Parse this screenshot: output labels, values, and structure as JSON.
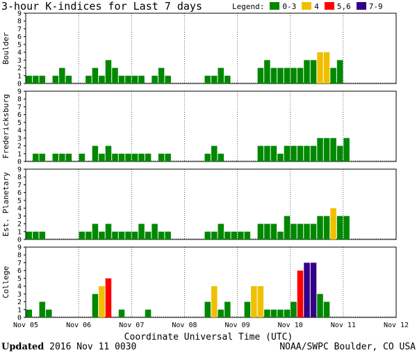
{
  "header": {
    "title": "3-hour K-indices for Last 7 days",
    "legend_label": "Legend:",
    "legend": [
      {
        "label": "0-3",
        "color": "#008800"
      },
      {
        "label": "4",
        "color": "#f0c000"
      },
      {
        "label": "5,6",
        "color": "#ff0000"
      },
      {
        "label": "7-9",
        "color": "#330088"
      }
    ]
  },
  "chart_data": {
    "type": "bar",
    "title": "3-hour K-indices for Last 7 days",
    "xlabel": "Coordinate Universal Time (UTC)",
    "ylim": [
      0,
      9
    ],
    "y_ticks": [
      "0",
      "1",
      "2",
      "3",
      "4",
      "5",
      "6",
      "7",
      "8",
      "9"
    ],
    "x_ticks": [
      "Nov 05",
      "Nov 06",
      "Nov 07",
      "Nov 08",
      "Nov 09",
      "Nov 10",
      "Nov 11",
      "Nov 12"
    ],
    "bins_per_day": 8,
    "colors": {
      "0-3": "#008800",
      "4": "#f0c000",
      "5,6": "#ff0000",
      "7-9": "#330088"
    },
    "panels": [
      {
        "name": "Boulder",
        "values": [
          1,
          1,
          1,
          0,
          1,
          2,
          1,
          0,
          0,
          1,
          2,
          1,
          3,
          2,
          1,
          1,
          1,
          1,
          0,
          1,
          2,
          1,
          0,
          0,
          0,
          0,
          0,
          1,
          1,
          2,
          1,
          0,
          0,
          0,
          0,
          2,
          3,
          2,
          2,
          2,
          2,
          2,
          3,
          3,
          4,
          4,
          2,
          3,
          0,
          0,
          0,
          0,
          0,
          0,
          0,
          0
        ]
      },
      {
        "name": "Fredericksburg",
        "values": [
          0,
          1,
          1,
          0,
          1,
          1,
          1,
          0,
          1,
          0,
          2,
          1,
          2,
          1,
          1,
          1,
          1,
          1,
          1,
          0,
          1,
          1,
          0,
          0,
          0,
          0,
          0,
          1,
          2,
          1,
          0,
          0,
          0,
          0,
          0,
          2,
          2,
          2,
          1,
          2,
          2,
          2,
          2,
          2,
          3,
          3,
          3,
          2,
          3,
          0,
          0,
          0,
          0,
          0,
          0,
          0
        ]
      },
      {
        "name": "Est. Planetary",
        "values": [
          1,
          1,
          1,
          0,
          0,
          0,
          0,
          0,
          1,
          1,
          2,
          1,
          2,
          1,
          1,
          1,
          1,
          2,
          1,
          2,
          1,
          1,
          0,
          0,
          0,
          0,
          0,
          1,
          1,
          2,
          1,
          1,
          1,
          1,
          0,
          2,
          2,
          2,
          1,
          3,
          2,
          2,
          2,
          2,
          3,
          3,
          4,
          3,
          3,
          0,
          0,
          0,
          0,
          0,
          0,
          0
        ]
      },
      {
        "name": "College",
        "values": [
          1,
          0,
          2,
          1,
          0,
          0,
          0,
          0,
          0,
          0,
          3,
          4,
          5,
          0,
          1,
          0,
          0,
          0,
          1,
          0,
          0,
          0,
          0,
          0,
          0,
          0,
          0,
          2,
          4,
          1,
          2,
          0,
          0,
          2,
          4,
          4,
          1,
          1,
          1,
          1,
          2,
          6,
          7,
          7,
          3,
          2,
          0,
          0,
          0,
          0,
          0,
          0,
          0,
          0,
          0,
          0
        ]
      }
    ]
  },
  "footer": {
    "updated_label": "Updated",
    "updated_value": "2016 Nov 11 0030",
    "credit": "NOAA/SWPC Boulder, CO USA"
  }
}
